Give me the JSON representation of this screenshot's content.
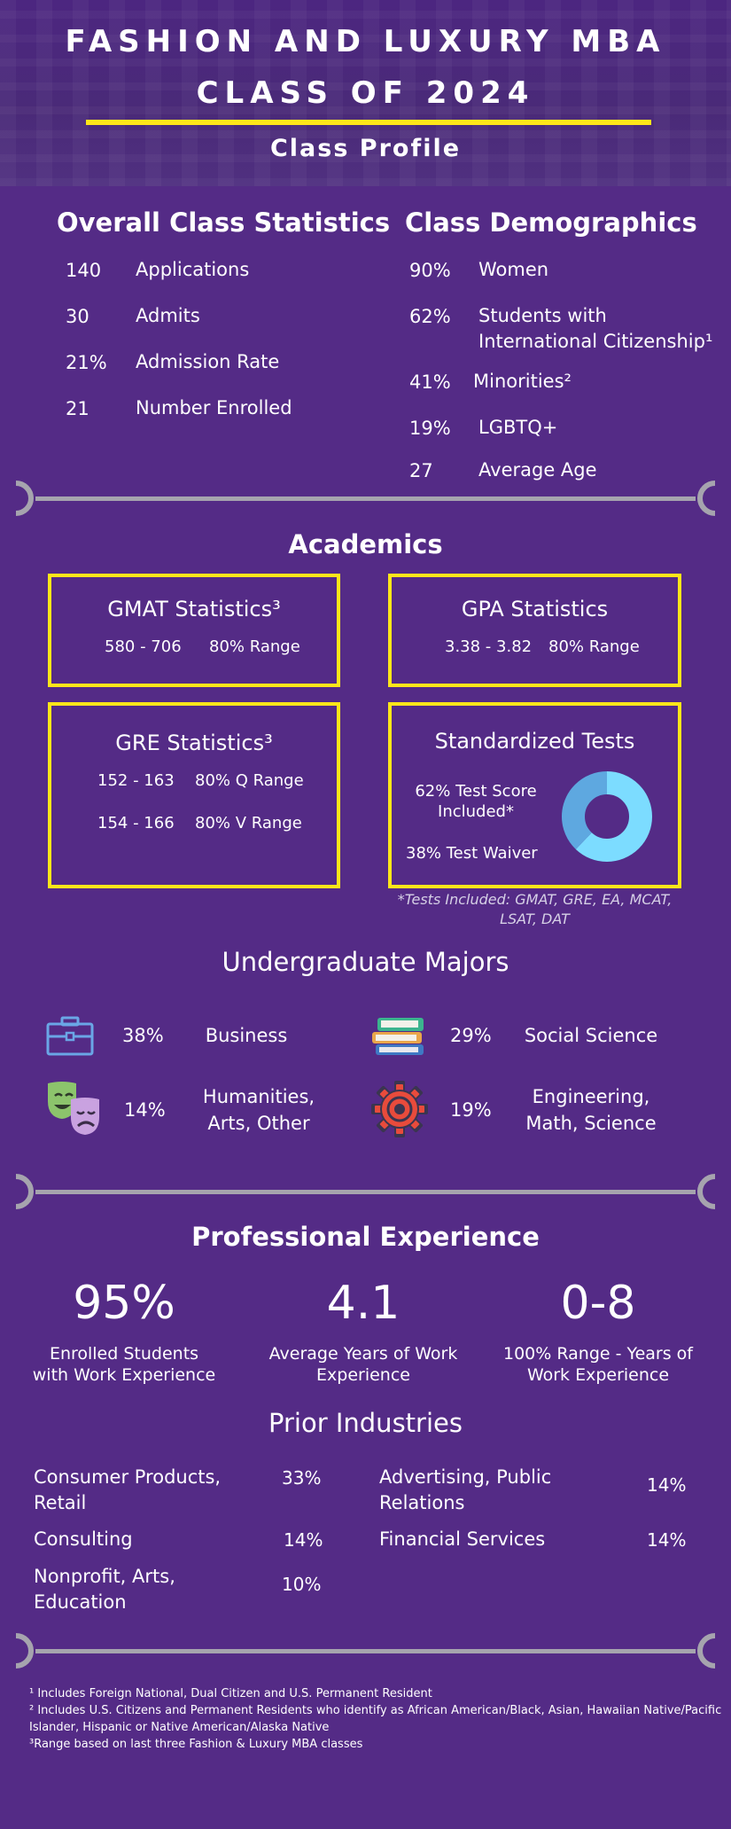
{
  "header": {
    "title_line1": "FASHION AND LUXURY MBA",
    "title_line2": "CLASS OF 2024",
    "subtitle": "Class Profile"
  },
  "overall": {
    "heading": "Overall Class Statistics",
    "items": [
      {
        "value": "140",
        "label": "Applications"
      },
      {
        "value": "30",
        "label": "Admits"
      },
      {
        "value": "21%",
        "label": "Admission Rate"
      },
      {
        "value": "21",
        "label": "Number Enrolled"
      }
    ]
  },
  "demographics": {
    "heading": "Class Demographics",
    "items": [
      {
        "value": "90%",
        "label": "Women"
      },
      {
        "value": "62%",
        "label_line1": "Students with",
        "label_line2": "International Citizenship¹"
      },
      {
        "value": "41%",
        "label": "Minorities²"
      },
      {
        "value": "19%",
        "label": "LGBTQ+"
      },
      {
        "value": "27",
        "label": "Average Age"
      }
    ]
  },
  "academics": {
    "heading": "Academics",
    "gmat": {
      "title": "GMAT Statistics³",
      "range": "580 - 706",
      "range_label": "80% Range"
    },
    "gpa": {
      "title": "GPA Statistics",
      "range": "3.38 - 3.82",
      "range_label": "80% Range"
    },
    "gre": {
      "title": "GRE Statistics³",
      "q_range": "152 - 163",
      "q_label": "80%  Q Range",
      "v_range": "154 - 166",
      "v_label": "80%  V Range"
    },
    "tests": {
      "title": "Standardized Tests",
      "included_line1": "62% Test Score",
      "included_line2": "Included*",
      "waiver": "38% Test Waiver",
      "included_pct": 62,
      "waiver_pct": 38,
      "color_included": "#7cdcff",
      "color_waiver": "#5ea8e0"
    },
    "tests_note_line1": "*Tests Included: GMAT, GRE, EA, MCAT,",
    "tests_note_line2": "LSAT, DAT"
  },
  "majors": {
    "heading": "Undergraduate Majors",
    "items": [
      {
        "pct": "38%",
        "label_line1": "Business",
        "label_line2": "",
        "icon": "briefcase-icon"
      },
      {
        "pct": "29%",
        "label_line1": "Social Science",
        "label_line2": "",
        "icon": "books-icon"
      },
      {
        "pct": "14%",
        "label_line1": "Humanities,",
        "label_line2": "Arts, Other",
        "icon": "theater-masks-icon"
      },
      {
        "pct": "19%",
        "label_line1": "Engineering,",
        "label_line2": "Math, Science",
        "icon": "gear-icon"
      }
    ]
  },
  "experience": {
    "heading": "Professional Experience",
    "items": [
      {
        "value": "95%",
        "label_line1": "Enrolled Students",
        "label_line2": "with Work Experience"
      },
      {
        "value": "4.1",
        "label_line1": "Average Years of Work",
        "label_line2": "Experience"
      },
      {
        "value": "0-8",
        "label_line1": "100% Range - Years of",
        "label_line2": "Work Experience"
      }
    ]
  },
  "industries": {
    "heading": "Prior Industries",
    "items": [
      {
        "label_line1": "Consumer Products,",
        "label_line2": "Retail",
        "pct": "33%"
      },
      {
        "label_line1": "Advertising, Public",
        "label_line2": "Relations",
        "pct": "14%"
      },
      {
        "label_line1": "Consulting",
        "label_line2": "",
        "pct": "14%"
      },
      {
        "label_line1": "Financial Services",
        "label_line2": "",
        "pct": "14%"
      },
      {
        "label_line1": "Nonprofit, Arts,",
        "label_line2": "Education",
        "pct": "10%"
      }
    ]
  },
  "footnotes": [
    "¹ Includes Foreign National, Dual Citizen and U.S. Permanent Resident",
    "² Includes U.S. Citizens and Permanent Residents who identify as African American/Black, Asian, Hawaiian Native/Pacific",
    "Islander, Hispanic or Native American/Alaska Native",
    "³Range based on last three Fashion & Luxury MBA classes"
  ],
  "colors": {
    "background": "#542b86",
    "accent": "#ffe619",
    "divider": "#a6a4ae"
  }
}
